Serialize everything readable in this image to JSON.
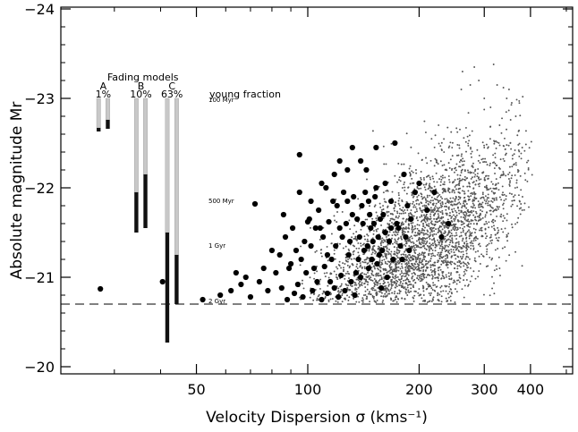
{
  "chart_data": {
    "type": "scatter",
    "title": "",
    "xlabel": "Velocity Dispersion σ (kms⁻¹)",
    "ylabel": "Absolute magnitude Mr",
    "x_scale": "log",
    "xlim": [
      21.5,
      520
    ],
    "ylim": [
      -19.92,
      -24.02
    ],
    "x_ticks": [
      50,
      100,
      200,
      300,
      400
    ],
    "x_tick_labels": [
      "50",
      "100",
      "200",
      "300",
      "400"
    ],
    "y_ticks": [
      -20,
      -21,
      -22,
      -23,
      -24
    ],
    "y_tick_labels": [
      "−20",
      "−21",
      "−22",
      "−23",
      "−24"
    ],
    "grid": false,
    "magnitude_limit": -20.7,
    "fading_models": {
      "title": "Fading models",
      "young_fraction_label": "young fraction",
      "models": [
        {
          "label": "A",
          "fraction": "1%"
        },
        {
          "label": "B",
          "fraction": "10%"
        },
        {
          "label": "C",
          "fraction": "63%"
        }
      ],
      "bars": [
        {
          "x": 27.2,
          "top": -23.0,
          "light_bottom": -22.67,
          "dark_bottom": -22.63
        },
        {
          "x": 28.8,
          "top": -23.0,
          "light_bottom": -22.76,
          "dark_bottom": -22.66
        },
        {
          "x": 34.4,
          "top": -23.0,
          "light_bottom": -21.95,
          "dark_bottom": -21.5
        },
        {
          "x": 36.4,
          "top": -23.0,
          "light_bottom": -22.15,
          "dark_bottom": -21.55
        },
        {
          "x": 41.7,
          "top": -23.0,
          "light_bottom": -21.5,
          "dark_bottom": -20.27
        },
        {
          "x": 44.2,
          "top": -23.0,
          "light_bottom": -21.25,
          "dark_bottom": -20.7
        }
      ],
      "age_labels": [
        {
          "text": "100 Myr",
          "mag": -23.0
        },
        {
          "text": "500 Myr",
          "mag": -21.87
        },
        {
          "text": "1 Gyr",
          "mag": -21.37
        },
        {
          "text": "2 Gyr",
          "mag": -20.75
        }
      ]
    },
    "series": [
      {
        "style": "large-black",
        "points": [
          [
            27.5,
            -20.87
          ],
          [
            40.5,
            -20.95
          ],
          [
            52,
            -20.75
          ],
          [
            58,
            -20.8
          ],
          [
            72,
            -21.82
          ],
          [
            95,
            -22.37
          ],
          [
            95,
            -21.95
          ],
          [
            100,
            -21.62
          ],
          [
            102,
            -21.35
          ],
          [
            104,
            -21.1
          ],
          [
            108,
            -21.55
          ],
          [
            112,
            -22.0
          ],
          [
            116,
            -21.2
          ],
          [
            120,
            -21.8
          ],
          [
            124,
            -21.45
          ],
          [
            128,
            -22.2
          ],
          [
            132,
            -21.7
          ],
          [
            135,
            -21.05
          ],
          [
            140,
            -21.8
          ],
          [
            144,
            -22.2
          ],
          [
            148,
            -21.55
          ],
          [
            152,
            -21.9
          ],
          [
            156,
            -21.25
          ],
          [
            160,
            -21.7
          ],
          [
            164,
            -21.0
          ],
          [
            168,
            -21.85
          ],
          [
            172,
            -22.5
          ],
          [
            176,
            -21.55
          ],
          [
            178,
            -21.35
          ],
          [
            182,
            -22.15
          ],
          [
            186,
            -21.8
          ],
          [
            190,
            -21.65
          ],
          [
            195,
            -21.95
          ],
          [
            200,
            -22.05
          ],
          [
            210,
            -21.75
          ],
          [
            220,
            -21.95
          ],
          [
            230,
            -21.45
          ],
          [
            240,
            -21.6
          ],
          [
            62,
            -20.85
          ],
          [
            66,
            -20.92
          ],
          [
            70,
            -20.78
          ],
          [
            74,
            -20.95
          ],
          [
            78,
            -20.85
          ],
          [
            82,
            -21.05
          ],
          [
            85,
            -20.88
          ],
          [
            88,
            -20.75
          ],
          [
            90,
            -21.15
          ],
          [
            92,
            -20.82
          ],
          [
            94,
            -20.92
          ],
          [
            97,
            -20.78
          ],
          [
            99,
            -21.05
          ],
          [
            103,
            -20.85
          ],
          [
            106,
            -20.95
          ],
          [
            109,
            -20.75
          ],
          [
            111,
            -21.12
          ],
          [
            113,
            -20.82
          ],
          [
            115,
            -20.95
          ],
          [
            118,
            -20.88
          ],
          [
            121,
            -20.78
          ],
          [
            123,
            -21.02
          ],
          [
            126,
            -20.85
          ],
          [
            129,
            -21.25
          ],
          [
            131,
            -20.95
          ],
          [
            134,
            -20.8
          ],
          [
            137,
            -21.2
          ],
          [
            139,
            -21.0
          ],
          [
            142,
            -21.3
          ],
          [
            146,
            -21.1
          ],
          [
            150,
            -21.4
          ],
          [
            154,
            -21.15
          ],
          [
            158,
            -20.88
          ],
          [
            80,
            -21.3
          ],
          [
            84,
            -21.25
          ],
          [
            87,
            -21.45
          ],
          [
            91,
            -21.55
          ],
          [
            93,
            -21.3
          ],
          [
            98,
            -21.4
          ],
          [
            101,
            -21.65
          ],
          [
            105,
            -21.55
          ],
          [
            107,
            -21.75
          ],
          [
            110,
            -21.45
          ],
          [
            114,
            -21.62
          ],
          [
            117,
            -21.85
          ],
          [
            119,
            -21.35
          ],
          [
            122,
            -21.55
          ],
          [
            125,
            -21.95
          ],
          [
            127,
            -21.6
          ],
          [
            130,
            -21.4
          ],
          [
            133,
            -21.9
          ],
          [
            136,
            -21.65
          ],
          [
            138,
            -21.45
          ],
          [
            141,
            -21.6
          ],
          [
            143,
            -21.95
          ],
          [
            145,
            -21.35
          ],
          [
            147,
            -21.7
          ],
          [
            149,
            -21.2
          ],
          [
            151,
            -21.6
          ],
          [
            153,
            -22.0
          ],
          [
            155,
            -21.45
          ],
          [
            157,
            -21.65
          ],
          [
            159,
            -21.3
          ],
          [
            162,
            -21.5
          ],
          [
            166,
            -21.4
          ],
          [
            170,
            -21.2
          ],
          [
            174,
            -21.6
          ],
          [
            180,
            -21.2
          ],
          [
            184,
            -21.45
          ],
          [
            188,
            -21.3
          ],
          [
            76,
            -21.1
          ],
          [
            68,
            -21.0
          ],
          [
            64,
            -21.05
          ],
          [
            86,
            -21.7
          ],
          [
            89,
            -21.1
          ],
          [
            96,
            -21.2
          ],
          [
            102,
            -21.85
          ],
          [
            109,
            -22.05
          ],
          [
            113,
            -21.25
          ],
          [
            118,
            -22.15
          ],
          [
            122,
            -22.3
          ],
          [
            128,
            -21.85
          ],
          [
            132,
            -22.45
          ],
          [
            139,
            -22.3
          ],
          [
            146,
            -21.85
          ],
          [
            153,
            -22.45
          ],
          [
            162,
            -22.05
          ],
          [
            168,
            -21.55
          ]
        ]
      },
      {
        "style": "small-gray",
        "generated": {
          "count": 2900,
          "seed": 20240611,
          "x_range": [
            90,
            410
          ],
          "x_mode": 205,
          "y_intercept_at_100": -20.55,
          "y_slope_per_dex": 2.6,
          "y_scatter": 0.42,
          "y_floor": -20.72,
          "y_cap": -23.4
        },
        "points": [
          [
            262,
            -23.3
          ],
          [
            282,
            -23.35
          ],
          [
            318,
            -23.38
          ],
          [
            325,
            -23.15
          ],
          [
            338,
            -23.12
          ],
          [
            345,
            -23.0
          ],
          [
            350,
            -23.1
          ],
          [
            356,
            -22.95
          ],
          [
            365,
            -22.8
          ],
          [
            260,
            -23.1
          ],
          [
            275,
            -23.15
          ],
          [
            290,
            -23.2
          ],
          [
            300,
            -23.0
          ],
          [
            312,
            -22.9
          ],
          [
            330,
            -22.7
          ],
          [
            380,
            -22.45
          ],
          [
            340,
            -22.3
          ],
          [
            300,
            -22.45
          ],
          [
            350,
            -22.1
          ],
          [
            320,
            -21.75
          ],
          [
            360,
            -21.9
          ],
          [
            370,
            -22.2
          ],
          [
            380,
            -21.75
          ],
          [
            280,
            -21.35
          ],
          [
            305,
            -21.6
          ],
          [
            330,
            -21.1
          ]
        ]
      }
    ]
  }
}
